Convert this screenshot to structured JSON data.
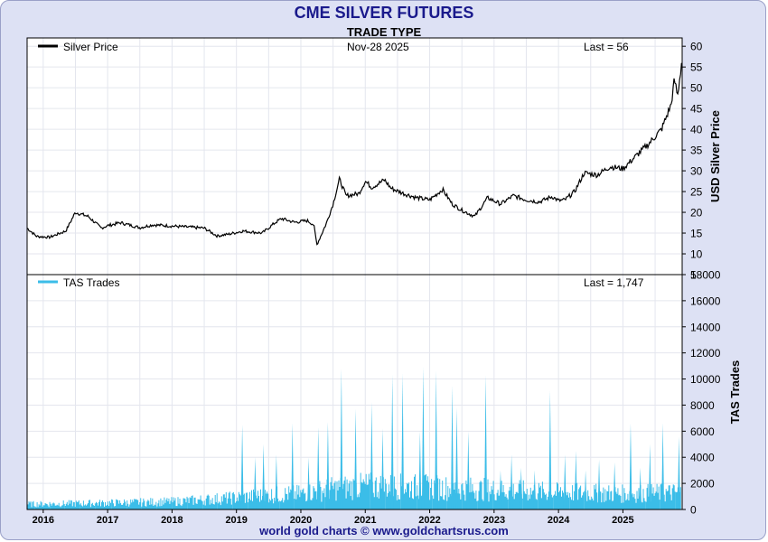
{
  "title": "CME SILVER FUTURES",
  "footer": "world gold charts © www.goldchartsrus.com",
  "chart_data": [
    {
      "type": "line",
      "title": "TRADE TYPE",
      "date_label": "Nov-28  2025",
      "legend": "Silver Price",
      "last_label": "Last = 56",
      "ylabel": "USD Silver Price",
      "ylim": [
        5,
        62
      ],
      "yticks": [
        5,
        10,
        15,
        20,
        25,
        30,
        35,
        40,
        45,
        50,
        55,
        60
      ],
      "color": "#000000",
      "x": [
        2015.75,
        2015.9,
        2016.1,
        2016.35,
        2016.5,
        2016.7,
        2016.9,
        2017.0,
        2017.2,
        2017.5,
        2017.7,
        2017.9,
        2018.2,
        2018.5,
        2018.7,
        2018.9,
        2019.1,
        2019.4,
        2019.6,
        2019.7,
        2019.9,
        2020.1,
        2020.2,
        2020.25,
        2020.4,
        2020.5,
        2020.6,
        2020.7,
        2020.9,
        2021.0,
        2021.1,
        2021.3,
        2021.4,
        2021.6,
        2021.8,
        2022.0,
        2022.2,
        2022.35,
        2022.5,
        2022.7,
        2022.9,
        2023.1,
        2023.3,
        2023.5,
        2023.7,
        2023.9,
        2024.0,
        2024.1,
        2024.25,
        2024.4,
        2024.6,
        2024.8,
        2025.0,
        2025.2,
        2025.4,
        2025.6,
        2025.75,
        2025.8,
        2025.85,
        2025.91
      ],
      "values": [
        16.2,
        14.2,
        14.0,
        15.5,
        20.0,
        19.0,
        16.2,
        16.8,
        17.5,
        16.3,
        17.0,
        16.8,
        16.5,
        16.2,
        14.3,
        14.8,
        15.5,
        15.0,
        17.5,
        18.5,
        17.6,
        18.0,
        17.0,
        12.2,
        17.5,
        22.0,
        28.0,
        24.0,
        24.5,
        27.5,
        26.0,
        27.8,
        25.8,
        24.5,
        23.5,
        23.0,
        25.5,
        22.0,
        20.5,
        19.0,
        23.5,
        22.0,
        24.0,
        23.0,
        22.5,
        23.8,
        22.8,
        23.0,
        25.0,
        29.5,
        29.0,
        31.0,
        30.5,
        33.5,
        36.5,
        40.0,
        46.0,
        52.0,
        48.0,
        56.0
      ]
    },
    {
      "type": "bar",
      "legend": "TAS Trades",
      "last_label": "Last = 1,747",
      "ylabel": "TAS Trades",
      "ylim": [
        0,
        18000
      ],
      "yticks": [
        0,
        2000,
        4000,
        6000,
        8000,
        10000,
        12000,
        14000,
        16000,
        18000
      ],
      "color": "#3bbde8",
      "baseline": [
        {
          "x": 2015.75,
          "v": 400
        },
        {
          "x": 2017.0,
          "v": 500
        },
        {
          "x": 2018.0,
          "v": 600
        },
        {
          "x": 2019.0,
          "v": 900
        },
        {
          "x": 2019.5,
          "v": 1100
        },
        {
          "x": 2020.0,
          "v": 1200
        },
        {
          "x": 2020.5,
          "v": 1600
        },
        {
          "x": 2021.0,
          "v": 1800
        },
        {
          "x": 2022.0,
          "v": 1700
        },
        {
          "x": 2023.0,
          "v": 1500
        },
        {
          "x": 2024.0,
          "v": 1300
        },
        {
          "x": 2025.0,
          "v": 1200
        },
        {
          "x": 2025.91,
          "v": 1300
        }
      ],
      "spikes": [
        {
          "x": 2019.09,
          "v": 6500
        },
        {
          "x": 2019.29,
          "v": 4000
        },
        {
          "x": 2019.42,
          "v": 5000
        },
        {
          "x": 2019.62,
          "v": 4200
        },
        {
          "x": 2019.87,
          "v": 6600
        },
        {
          "x": 2020.12,
          "v": 4000
        },
        {
          "x": 2020.27,
          "v": 6300
        },
        {
          "x": 2020.42,
          "v": 6700
        },
        {
          "x": 2020.63,
          "v": 10800
        },
        {
          "x": 2020.85,
          "v": 7700
        },
        {
          "x": 2021.1,
          "v": 8200
        },
        {
          "x": 2021.27,
          "v": 6200
        },
        {
          "x": 2021.42,
          "v": 10300
        },
        {
          "x": 2021.58,
          "v": 10400
        },
        {
          "x": 2021.85,
          "v": 6000
        },
        {
          "x": 2021.9,
          "v": 10900
        },
        {
          "x": 2022.1,
          "v": 10600
        },
        {
          "x": 2022.35,
          "v": 9500
        },
        {
          "x": 2022.42,
          "v": 7800
        },
        {
          "x": 2022.6,
          "v": 6000
        },
        {
          "x": 2022.87,
          "v": 10300
        },
        {
          "x": 2023.1,
          "v": 3000
        },
        {
          "x": 2023.27,
          "v": 4200
        },
        {
          "x": 2023.42,
          "v": 3200
        },
        {
          "x": 2023.63,
          "v": 3000
        },
        {
          "x": 2023.87,
          "v": 9100
        },
        {
          "x": 2024.1,
          "v": 4200
        },
        {
          "x": 2024.27,
          "v": 4500
        },
        {
          "x": 2024.42,
          "v": 3000
        },
        {
          "x": 2024.63,
          "v": 3800
        },
        {
          "x": 2024.87,
          "v": 3600
        },
        {
          "x": 2025.12,
          "v": 6600
        },
        {
          "x": 2025.27,
          "v": 3200
        },
        {
          "x": 2025.42,
          "v": 5000
        },
        {
          "x": 2025.62,
          "v": 6600
        },
        {
          "x": 2025.87,
          "v": 5600
        }
      ],
      "last_value": 1747
    }
  ],
  "x_axis": {
    "range": [
      2015.75,
      2025.92
    ],
    "labels": [
      "2016",
      "2017",
      "2018",
      "2019",
      "2020",
      "2021",
      "2022",
      "2023",
      "2024",
      "2025"
    ],
    "positions": [
      2016,
      2017,
      2018,
      2019,
      2020,
      2021,
      2022,
      2023,
      2024,
      2025
    ]
  }
}
